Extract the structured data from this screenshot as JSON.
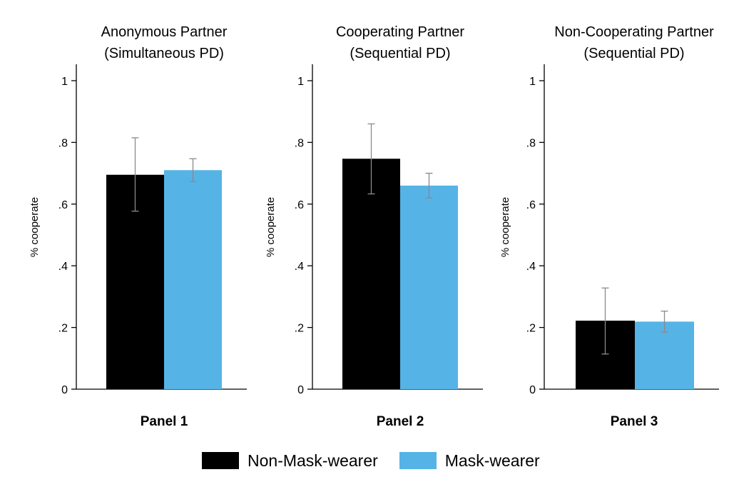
{
  "colors": {
    "non_mask": "#000000",
    "mask": "#56b3e6",
    "error_bar": "#8a8a8a",
    "axis": "#000000"
  },
  "legend": [
    {
      "label": "Non-Mask-wearer",
      "color": "#000000"
    },
    {
      "label": "Mask-wearer",
      "color": "#56b3e6"
    }
  ],
  "chart_data": [
    {
      "type": "bar",
      "title": [
        "Anonymous Partner",
        "(Simultaneous PD)"
      ],
      "panel_label": "Panel 1",
      "ylabel": "% cooperate",
      "ylim": [
        0,
        1.05
      ],
      "yticks": [
        {
          "value": 0,
          "label": "0"
        },
        {
          "value": 0.2,
          "label": ".2"
        },
        {
          "value": 0.4,
          "label": ".4"
        },
        {
          "value": 0.6,
          "label": ".6"
        },
        {
          "value": 0.8,
          "label": ".8"
        },
        {
          "value": 1,
          "label": "1"
        }
      ],
      "series": [
        {
          "name": "Non-Mask-wearer",
          "value": 0.695,
          "ci": [
            0.577,
            0.815
          ]
        },
        {
          "name": "Mask-wearer",
          "value": 0.71,
          "ci": [
            0.673,
            0.747
          ]
        }
      ]
    },
    {
      "type": "bar",
      "title": [
        "Cooperating Partner",
        "(Sequential PD)"
      ],
      "panel_label": "Panel 2",
      "ylabel": "% cooperate",
      "ylim": [
        0,
        1.05
      ],
      "yticks": [
        {
          "value": 0,
          "label": "0"
        },
        {
          "value": 0.2,
          "label": ".2"
        },
        {
          "value": 0.4,
          "label": ".4"
        },
        {
          "value": 0.6,
          "label": ".6"
        },
        {
          "value": 0.8,
          "label": ".8"
        },
        {
          "value": 1,
          "label": "1"
        }
      ],
      "series": [
        {
          "name": "Non-Mask-wearer",
          "value": 0.747,
          "ci": [
            0.633,
            0.86
          ]
        },
        {
          "name": "Mask-wearer",
          "value": 0.66,
          "ci": [
            0.62,
            0.7
          ]
        }
      ]
    },
    {
      "type": "bar",
      "title": [
        "Non-Cooperating Partner",
        "(Sequential PD)"
      ],
      "panel_label": "Panel 3",
      "ylabel": "% cooperate",
      "ylim": [
        0,
        1.05
      ],
      "yticks": [
        {
          "value": 0,
          "label": "0"
        },
        {
          "value": 0.2,
          "label": ".2"
        },
        {
          "value": 0.4,
          "label": ".4"
        },
        {
          "value": 0.6,
          "label": ".6"
        },
        {
          "value": 0.8,
          "label": ".8"
        },
        {
          "value": 1,
          "label": "1"
        }
      ],
      "series": [
        {
          "name": "Non-Mask-wearer",
          "value": 0.222,
          "ci": [
            0.114,
            0.328
          ]
        },
        {
          "name": "Mask-wearer",
          "value": 0.219,
          "ci": [
            0.185,
            0.253
          ]
        }
      ]
    }
  ]
}
